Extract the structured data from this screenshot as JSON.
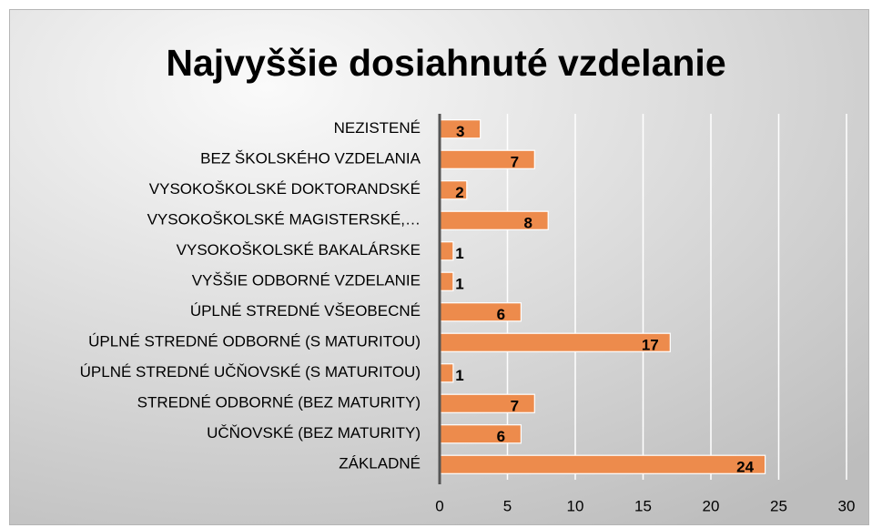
{
  "chart_data": {
    "type": "bar",
    "orientation": "horizontal",
    "title": "Najvyššie dosiahnuté vzdelanie",
    "categories": [
      "NEZISTENÉ",
      "BEZ ŠKOLSKÉHO VZDELANIA",
      "VYSOKOŠKOLSKÉ DOKTORANDSKÉ",
      "VYSOKOŠKOLSKÉ MAGISTERSKÉ,…",
      "VYSOKOŠKOLSKÉ BAKALÁRSKE",
      "VYŠŠIE ODBORNÉ VZDELANIE",
      "ÚPLNÉ STREDNÉ VŠEOBECNÉ",
      "ÚPLNÉ STREDNÉ ODBORNÉ (S MATURITOU)",
      "ÚPLNÉ STREDNÉ UČŇOVSKÉ (S MATURITOU)",
      "STREDNÉ ODBORNÉ (BEZ MATURITY)",
      "UČŇOVSKÉ (BEZ MATURITY)",
      "ZÁKLADNÉ"
    ],
    "values": [
      3,
      7,
      2,
      8,
      1,
      1,
      6,
      17,
      1,
      7,
      6,
      24
    ],
    "color": "#ed8b4c",
    "xlim": [
      0,
      30
    ],
    "xticks": [
      0,
      5,
      10,
      15,
      20,
      25,
      30
    ],
    "grid": true
  }
}
